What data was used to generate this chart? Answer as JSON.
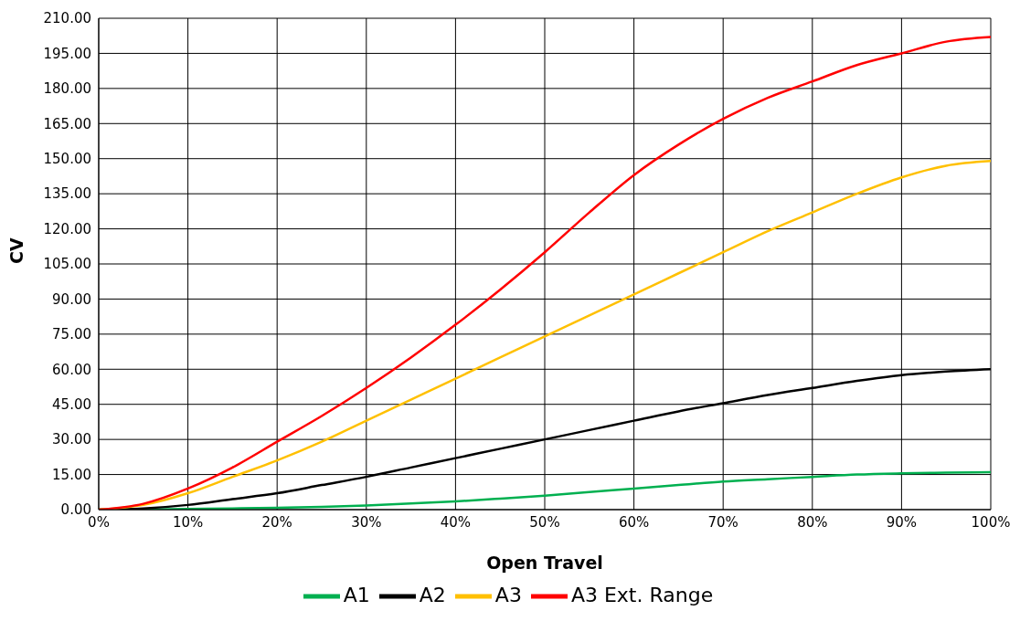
{
  "chart_data": {
    "type": "line",
    "xlabel": "Open Travel",
    "ylabel": "CV",
    "x": [
      0,
      5,
      10,
      15,
      20,
      25,
      30,
      35,
      40,
      45,
      50,
      55,
      60,
      65,
      70,
      75,
      80,
      85,
      90,
      95,
      100
    ],
    "series": [
      {
        "name": "A1",
        "color": "#00b050",
        "values": [
          0,
          0.1,
          0.3,
          0.5,
          0.8,
          1.2,
          1.8,
          2.6,
          3.5,
          4.7,
          6,
          7.5,
          9,
          10.5,
          12,
          13,
          14,
          15,
          15.5,
          15.8,
          16
        ]
      },
      {
        "name": "A2",
        "color": "#000000",
        "values": [
          0,
          0.5,
          2,
          4.5,
          7,
          10.5,
          14,
          18,
          22,
          26,
          30,
          34,
          38,
          42,
          45.5,
          49,
          52,
          55,
          57.5,
          59,
          60
        ]
      },
      {
        "name": "A3",
        "color": "#ffc000",
        "values": [
          0,
          2,
          7,
          14,
          21,
          29,
          38,
          47,
          56,
          65,
          74,
          83,
          92,
          101,
          110,
          119,
          127,
          135,
          142,
          147,
          149
        ]
      },
      {
        "name": "A3 Ext. Range",
        "color": "#ff0000",
        "values": [
          0,
          2.5,
          9,
          18,
          29,
          40,
          52,
          65,
          79,
          94,
          110,
          127,
          143,
          156,
          167,
          176,
          183,
          190,
          195,
          200,
          202
        ]
      }
    ],
    "xlim": [
      0,
      100
    ],
    "xticks": [
      {
        "value": 0,
        "label": "0%"
      },
      {
        "value": 10,
        "label": "10%"
      },
      {
        "value": 20,
        "label": "20%"
      },
      {
        "value": 30,
        "label": "30%"
      },
      {
        "value": 40,
        "label": "40%"
      },
      {
        "value": 50,
        "label": "50%"
      },
      {
        "value": 60,
        "label": "60%"
      },
      {
        "value": 70,
        "label": "70%"
      },
      {
        "value": 80,
        "label": "80%"
      },
      {
        "value": 90,
        "label": "90%"
      },
      {
        "value": 100,
        "label": "100%"
      }
    ],
    "ylim": [
      0,
      210
    ],
    "yticks": [
      {
        "value": 0,
        "label": "0.00"
      },
      {
        "value": 15,
        "label": "15.00"
      },
      {
        "value": 30,
        "label": "30.00"
      },
      {
        "value": 45,
        "label": "45.00"
      },
      {
        "value": 60,
        "label": "60.00"
      },
      {
        "value": 75,
        "label": "75.00"
      },
      {
        "value": 90,
        "label": "90.00"
      },
      {
        "value": 105,
        "label": "105.00"
      },
      {
        "value": 120,
        "label": "120.00"
      },
      {
        "value": 135,
        "label": "135.00"
      },
      {
        "value": 150,
        "label": "150.00"
      },
      {
        "value": 165,
        "label": "165.00"
      },
      {
        "value": 180,
        "label": "180.00"
      },
      {
        "value": 195,
        "label": "195.00"
      },
      {
        "value": 210,
        "label": "210.00"
      }
    ],
    "grid": true,
    "legend": "bottom",
    "marker": "none",
    "line_style": "solid"
  }
}
